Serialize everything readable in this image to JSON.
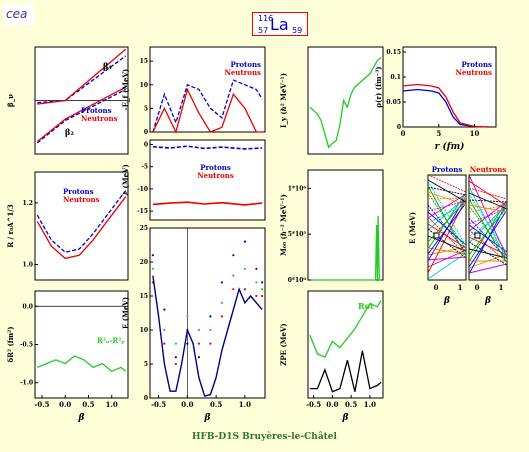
{
  "header": {
    "logo_text": "cea",
    "nucleus": {
      "mass": "116",
      "symbol": "La",
      "proton": "57",
      "neutron": "59"
    }
  },
  "footer": "HFB-D1S Bruyères-le-Châtel",
  "colors": {
    "background": "#fefed8",
    "protons": "#0000cc",
    "neutrons": "#ee0000",
    "accent_green": "#22cc22"
  },
  "chart_data": [
    {
      "id": "beta",
      "type": "line",
      "ylabel": "β_ν",
      "ylim": [
        -1.2,
        1.2
      ],
      "labels": [
        "β₄",
        "β₂",
        "Protons",
        "Neutrons"
      ],
      "series": [
        {
          "name": "β4 Protons",
          "x": [
            -0.6,
            0.0,
            1.3
          ],
          "y": [
            -0.05,
            0.0,
            1.0
          ]
        },
        {
          "name": "β4 Neutrons",
          "x": [
            -0.6,
            0.0,
            1.3
          ],
          "y": [
            -0.08,
            0.0,
            1.15
          ]
        },
        {
          "name": "β2 Protons",
          "x": [
            -0.6,
            0.0,
            1.3
          ],
          "y": [
            -0.95,
            -0.45,
            0.25
          ]
        },
        {
          "name": "β2 Neutrons",
          "x": [
            -0.6,
            0.0,
            1.3
          ],
          "y": [
            -0.92,
            -0.42,
            0.3
          ]
        }
      ]
    },
    {
      "id": "radius",
      "type": "line",
      "ylabel": "R / r₀A^1/3",
      "yticks": [
        "1.0",
        "1.2"
      ],
      "ylim": [
        0.95,
        1.3
      ],
      "legend": [
        "Protons",
        "Neutrons"
      ],
      "series": [
        {
          "name": "Protons",
          "x": [
            -0.6,
            -0.3,
            0.0,
            0.3,
            0.6,
            1.0,
            1.3
          ],
          "y": [
            1.16,
            1.08,
            1.04,
            1.05,
            1.1,
            1.18,
            1.24
          ]
        },
        {
          "name": "Neutrons",
          "x": [
            -0.6,
            -0.3,
            0.0,
            0.3,
            0.6,
            1.0,
            1.3
          ],
          "y": [
            1.14,
            1.06,
            1.02,
            1.03,
            1.08,
            1.16,
            1.22
          ]
        }
      ]
    },
    {
      "id": "dr2",
      "type": "line",
      "ylabel": "δR² (fm²)",
      "yticks": [
        "0.0",
        "-0.5",
        "-1.0"
      ],
      "ylim": [
        -1.2,
        0.2
      ],
      "label": "R²ₙ-R²ₚ",
      "xticks": [
        "-0.5",
        "0.0",
        "0.5",
        "1.0"
      ],
      "xlabel": "β",
      "series": [
        {
          "name": "R²ₙ-R²ₚ",
          "x": [
            -0.6,
            -0.4,
            -0.2,
            0.0,
            0.2,
            0.4,
            0.6,
            0.8,
            1.0,
            1.2,
            1.3
          ],
          "y": [
            -0.8,
            -0.75,
            -0.7,
            -0.75,
            -0.65,
            -0.7,
            -0.8,
            -0.75,
            -0.85,
            -0.8,
            -0.85
          ]
        }
      ]
    },
    {
      "id": "ef",
      "type": "line",
      "ylabel": "-E_f (MeV)",
      "yticks": [
        "15",
        "10",
        "5",
        "0"
      ],
      "ylim": [
        0,
        18
      ],
      "legend": [
        "Protons",
        "Neutrons"
      ],
      "series": [
        {
          "name": "Protons",
          "x": [
            -0.6,
            -0.4,
            -0.2,
            0.0,
            0.2,
            0.4,
            0.6,
            0.8,
            1.0,
            1.2,
            1.3
          ],
          "y": [
            0,
            8,
            2,
            10,
            9,
            5,
            3,
            11,
            10,
            9,
            7
          ]
        },
        {
          "name": "Neutrons",
          "x": [
            -0.6,
            -0.4,
            -0.2,
            0.0,
            0.2,
            0.4,
            0.6,
            0.8,
            1.0,
            1.2,
            1.3
          ],
          "y": [
            0,
            5,
            0,
            9,
            4,
            0,
            1,
            8,
            5,
            0,
            0
          ]
        }
      ]
    },
    {
      "id": "lambda",
      "type": "line",
      "ylabel": "λ (MeV)",
      "yticks": [
        "0",
        "-5",
        "-10",
        "-15"
      ],
      "ylim": [
        -17,
        1
      ],
      "legend": [
        "Protons",
        "Neutrons"
      ],
      "series": [
        {
          "name": "Protons",
          "x": [
            -0.6,
            -0.3,
            0.0,
            0.3,
            0.6,
            1.0,
            1.3
          ],
          "y": [
            -0.5,
            -0.8,
            -0.4,
            -0.9,
            -0.6,
            -1.0,
            -0.8
          ]
        },
        {
          "name": "Neutrons",
          "x": [
            -0.6,
            -0.3,
            0.0,
            0.3,
            0.6,
            1.0,
            1.3
          ],
          "y": [
            -13.5,
            -13.2,
            -13.0,
            -13.4,
            -13.1,
            -13.6,
            -13.2
          ]
        }
      ]
    },
    {
      "id": "energy",
      "type": "line",
      "ylabel": "E (MeV)",
      "yticks": [
        "25",
        "20",
        "15",
        "10",
        "5",
        "0"
      ],
      "ylim": [
        0,
        25
      ],
      "xticks": [
        "-0.5",
        "0.0",
        "0.5",
        "1.0"
      ],
      "xlabel": "β",
      "series": [
        {
          "name": "E",
          "x": [
            -0.6,
            -0.5,
            -0.4,
            -0.3,
            -0.2,
            -0.1,
            0.0,
            0.1,
            0.2,
            0.3,
            0.4,
            0.5,
            0.6,
            0.7,
            0.8,
            0.9,
            1.0,
            1.1,
            1.2,
            1.3
          ],
          "y": [
            18,
            12,
            5,
            1,
            1,
            5,
            10,
            8,
            3,
            0.3,
            0.5,
            3,
            7,
            10,
            13,
            16,
            14,
            15,
            14,
            13
          ]
        },
        {
          "name": "dots-1",
          "x": [
            -0.6,
            -0.4,
            -0.2,
            0.0,
            0.2,
            0.4,
            0.6,
            0.8,
            1.0,
            1.2,
            1.3
          ],
          "y": [
            21,
            13,
            6,
            8,
            6,
            12,
            17,
            21,
            23,
            19,
            17
          ]
        },
        {
          "name": "dots-2",
          "x": [
            -0.6,
            -0.4,
            -0.2,
            0.0,
            0.2,
            0.4,
            0.6,
            0.8,
            1.0,
            1.2,
            1.3
          ],
          "y": [
            19,
            10,
            8,
            12,
            10,
            10,
            14,
            18,
            19,
            17,
            16
          ]
        },
        {
          "name": "dots-3",
          "x": [
            -0.6,
            -0.4,
            -0.2,
            0.0,
            0.2,
            0.4,
            0.6,
            0.8,
            1.0,
            1.2,
            1.3
          ],
          "y": [
            17,
            8,
            5,
            10,
            8,
            8,
            12,
            16,
            16,
            15,
            15
          ]
        }
      ]
    },
    {
      "id": "inertia",
      "type": "line",
      "ylabel": "I_y (ℏ² MeV⁻¹)",
      "ylim": [
        0,
        80
      ],
      "series": [
        {
          "name": "I",
          "x": [
            -0.6,
            -0.4,
            -0.3,
            -0.2,
            -0.1,
            0.0,
            0.1,
            0.2,
            0.3,
            0.4,
            0.5,
            0.6,
            0.8,
            1.0,
            1.2,
            1.3
          ],
          "y": [
            35,
            30,
            25,
            15,
            5,
            8,
            10,
            22,
            40,
            35,
            45,
            50,
            55,
            60,
            70,
            72
          ]
        }
      ]
    },
    {
      "id": "m00",
      "type": "line",
      "ylabel": "M₀₀ (ℏ⁻² MeV⁻¹)",
      "yticks": [
        "1*10⁶",
        "5*10⁵",
        "0*10⁰"
      ],
      "ylim": [
        0,
        1200000
      ],
      "series": [
        {
          "name": "M",
          "x": [
            -0.6,
            1.15,
            1.18,
            1.2,
            1.22,
            1.25,
            1.3
          ],
          "y": [
            0,
            0,
            600000,
            0,
            700000,
            0,
            0
          ]
        }
      ]
    },
    {
      "id": "zpe",
      "type": "line",
      "ylabel": "ZPE (MeV)",
      "label": "Rot",
      "xticks": [
        "-0.5",
        "0.0",
        "0.5",
        "1.0"
      ],
      "xlabel": "β",
      "series": [
        {
          "name": "Rot",
          "x": [
            -0.6,
            -0.4,
            -0.2,
            0.0,
            0.2,
            0.4,
            0.6,
            0.8,
            1.0,
            1.2,
            1.3
          ],
          "y": [
            2.0,
            1.4,
            1.3,
            1.8,
            1.6,
            1.9,
            2.2,
            2.6,
            3.0,
            2.9,
            3.1
          ]
        },
        {
          "name": "Q",
          "x": [
            -0.6,
            -0.4,
            -0.2,
            0.0,
            0.2,
            0.4,
            0.6,
            0.8,
            1.0,
            1.2,
            1.3
          ],
          "y": [
            0.3,
            0.3,
            0.9,
            0.2,
            0.3,
            1.2,
            0.2,
            1.5,
            0.3,
            0.4,
            0.5
          ]
        }
      ]
    },
    {
      "id": "density",
      "type": "line",
      "ylabel": "ρ(r) (fm⁻³)",
      "xlabel": "r (fm)",
      "yticks": [
        "0.15",
        "0.1",
        "0.05",
        "0"
      ],
      "xticks": [
        "0",
        "5",
        "10"
      ],
      "ylim": [
        0,
        0.16
      ],
      "xlim": [
        0,
        13
      ],
      "legend": [
        "Protons",
        "Neutrons"
      ],
      "series": [
        {
          "name": "Protons",
          "x": [
            0,
            2,
            4,
            5,
            6,
            7,
            8,
            10,
            12
          ],
          "y": [
            0.072,
            0.075,
            0.072,
            0.068,
            0.05,
            0.02,
            0.005,
            0.001,
            0
          ]
        },
        {
          "name": "Neutrons",
          "x": [
            0,
            2,
            4,
            5,
            6,
            7,
            8,
            10,
            12
          ],
          "y": [
            0.082,
            0.085,
            0.082,
            0.078,
            0.06,
            0.03,
            0.008,
            0.001,
            0
          ]
        }
      ]
    },
    {
      "id": "levels",
      "type": "line",
      "ylabel": "E (MeV)",
      "xticks": [
        "0",
        "1"
      ],
      "xlabel": "β",
      "panels": [
        "Protons",
        "Neutrons"
      ]
    }
  ]
}
